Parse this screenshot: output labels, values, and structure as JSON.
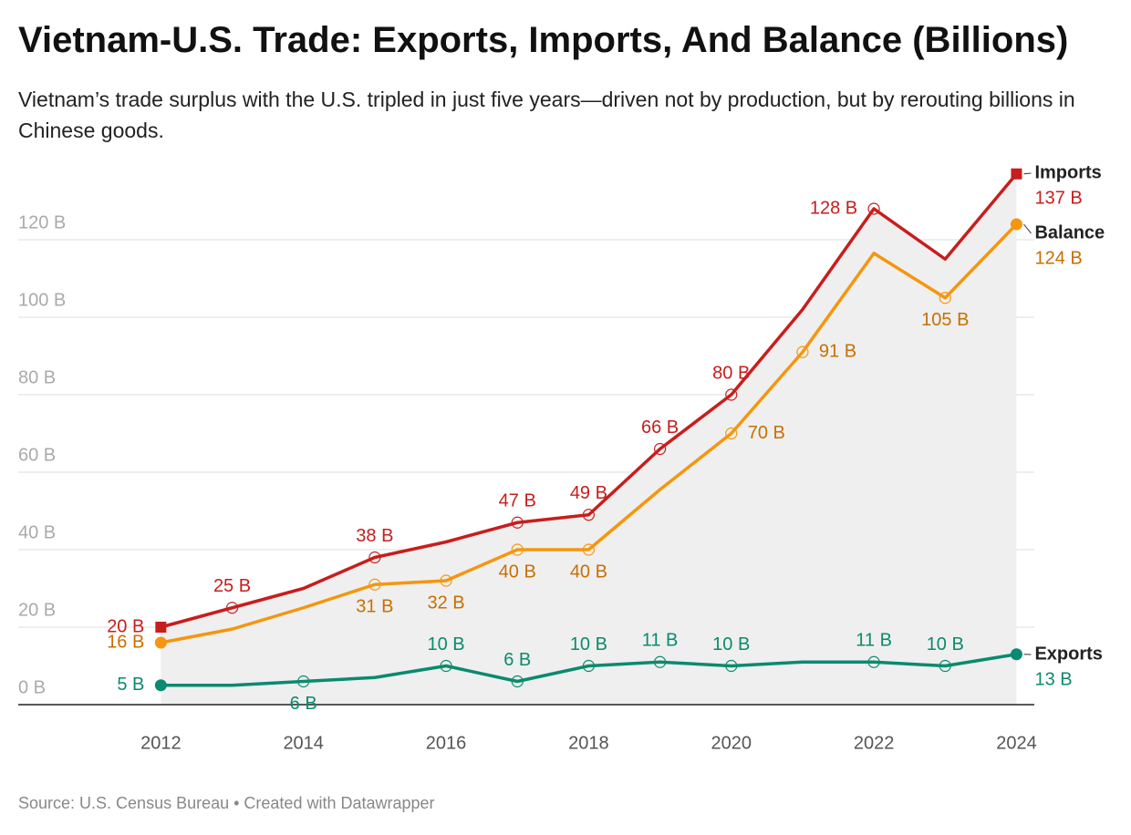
{
  "chart_data": {
    "type": "line",
    "title": "Vietnam-U.S. Trade: Exports, Imports, And Balance (Billions)",
    "subtitle": "Vietnam’s trade surplus with the U.S. tripled in just five years—driven not by production, but by rerouting billions in Chinese goods.",
    "source": "Source: U.S. Census Bureau • Created with Datawrapper",
    "x": [
      2012,
      2013,
      2014,
      2015,
      2016,
      2017,
      2018,
      2019,
      2020,
      2021,
      2022,
      2023,
      2024
    ],
    "xlim": [
      2010,
      2024.25
    ],
    "xticks": [
      2012,
      2014,
      2016,
      2018,
      2020,
      2022,
      2024
    ],
    "ylim": [
      0,
      140
    ],
    "yticks": [
      {
        "value": 0,
        "label": "0 B"
      },
      {
        "value": 20,
        "label": "20 B"
      },
      {
        "value": 40,
        "label": "40 B"
      },
      {
        "value": 60,
        "label": "60 B"
      },
      {
        "value": 80,
        "label": "80 B"
      },
      {
        "value": 100,
        "label": "100 B"
      },
      {
        "value": 120,
        "label": "120 B"
      }
    ],
    "grid": true,
    "series": [
      {
        "name": "Imports",
        "color": "#c71e1d",
        "values": [
          20,
          25,
          30,
          38,
          42,
          47,
          49,
          66,
          80,
          102,
          128,
          115,
          137
        ],
        "value_labels": [
          "20 B",
          "25 B",
          null,
          "38 B",
          null,
          "47 B",
          "49 B",
          "66 B",
          "80 B",
          null,
          "128 B",
          null,
          "137 B"
        ]
      },
      {
        "name": "Balance",
        "color": "#f5960f",
        "values": [
          16,
          19.5,
          25,
          31,
          32,
          40,
          40,
          55.5,
          70,
          91,
          116.5,
          105,
          124
        ],
        "value_labels": [
          "16 B",
          null,
          null,
          "31 B",
          "32 B",
          "40 B",
          "40 B",
          null,
          "70 B",
          "91 B",
          null,
          "105 B",
          "124 B"
        ]
      },
      {
        "name": "Exports",
        "color": "#0a8a6e",
        "values": [
          5,
          5,
          6,
          7,
          10,
          6,
          10,
          11,
          10,
          11,
          11,
          10,
          13
        ],
        "value_labels": [
          "5 B",
          null,
          "6 B",
          null,
          "10 B",
          "6 B",
          "10 B",
          "11 B",
          "10 B",
          null,
          "11 B",
          "10 B",
          "13 B"
        ]
      }
    ]
  }
}
